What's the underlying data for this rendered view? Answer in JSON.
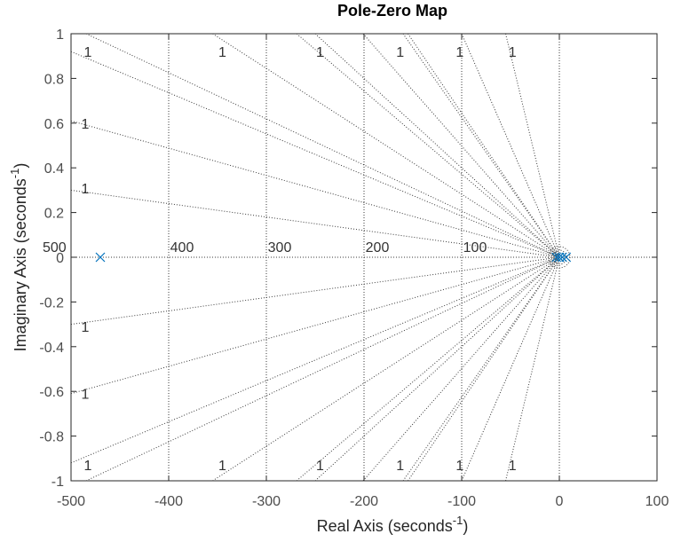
{
  "chart_data": {
    "type": "scatter",
    "title": "Pole-Zero Map",
    "xlabel": "Real Axis (seconds",
    "ylabel": "Imaginary Axis (seconds",
    "label_superscript": "-1",
    "xlim": [
      -500,
      100
    ],
    "ylim": [
      -1,
      1
    ],
    "xticks": [
      -500,
      -400,
      -300,
      -200,
      -100,
      0,
      100
    ],
    "yticks": [
      -1,
      -0.8,
      -0.6,
      -0.4,
      -0.2,
      0,
      0.2,
      0.4,
      0.6,
      0.8,
      1
    ],
    "grid": true,
    "damping_grid_label": "1",
    "natural_frequency_labels": [
      "500",
      "400",
      "300",
      "200",
      "100"
    ],
    "series": [
      {
        "marker": "x",
        "color": "#0072BD",
        "points": [
          {
            "x": -470,
            "y": 0
          },
          {
            "x": -3,
            "y": 0
          },
          {
            "x": 0,
            "y": 0
          },
          {
            "x": 3,
            "y": 0
          },
          {
            "x": 7,
            "y": 0
          }
        ]
      }
    ]
  }
}
